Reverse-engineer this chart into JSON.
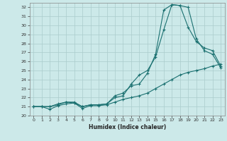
{
  "xlabel": "Humidex (Indice chaleur)",
  "bg_color": "#cce9e9",
  "grid_color": "#aacccc",
  "line_color": "#1a7070",
  "xlim": [
    -0.5,
    23.5
  ],
  "ylim": [
    20.0,
    32.5
  ],
  "yticks": [
    20,
    21,
    22,
    23,
    24,
    25,
    26,
    27,
    28,
    29,
    30,
    31,
    32
  ],
  "xticks": [
    0,
    1,
    2,
    3,
    4,
    5,
    6,
    7,
    8,
    9,
    10,
    11,
    12,
    13,
    14,
    15,
    16,
    17,
    18,
    19,
    20,
    21,
    22,
    23
  ],
  "line1_x": [
    0,
    1,
    2,
    3,
    4,
    5,
    6,
    7,
    8,
    9,
    10,
    11,
    12,
    13,
    14,
    15,
    16,
    17,
    18,
    19,
    20,
    21,
    22,
    23
  ],
  "line1_y": [
    21.0,
    21.0,
    20.7,
    21.1,
    21.3,
    21.4,
    20.8,
    21.1,
    21.1,
    21.2,
    21.5,
    21.8,
    22.0,
    22.2,
    22.5,
    23.0,
    23.5,
    24.0,
    24.5,
    24.8,
    25.0,
    25.2,
    25.5,
    25.7
  ],
  "line2_x": [
    0,
    1,
    2,
    3,
    4,
    5,
    6,
    7,
    8,
    9,
    10,
    11,
    12,
    13,
    14,
    15,
    16,
    17,
    18,
    19,
    20,
    21,
    22,
    23
  ],
  "line2_y": [
    21.0,
    21.0,
    21.0,
    21.2,
    21.5,
    21.4,
    21.0,
    21.2,
    21.2,
    21.3,
    22.2,
    22.5,
    23.3,
    23.5,
    24.7,
    26.8,
    31.7,
    32.3,
    32.2,
    32.0,
    28.5,
    27.2,
    26.8,
    25.3
  ],
  "line3_x": [
    0,
    1,
    2,
    3,
    4,
    5,
    6,
    7,
    8,
    9,
    10,
    11,
    12,
    13,
    14,
    15,
    16,
    17,
    18,
    19,
    20,
    21,
    22,
    23
  ],
  "line3_y": [
    21.0,
    21.0,
    21.0,
    21.3,
    21.5,
    21.5,
    21.0,
    21.2,
    21.2,
    21.3,
    22.0,
    22.2,
    23.5,
    24.5,
    25.0,
    26.5,
    29.5,
    32.3,
    32.2,
    29.8,
    28.2,
    27.5,
    27.2,
    25.5
  ]
}
